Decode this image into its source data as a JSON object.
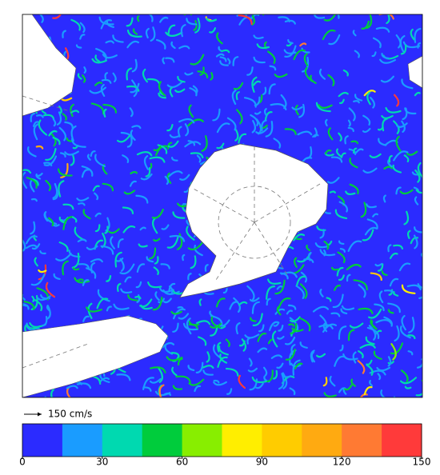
{
  "reference_vector": {
    "label": "150 cm/s"
  },
  "colorbar": {
    "lim": [
      0,
      150
    ],
    "ticks": [
      0,
      30,
      60,
      90,
      120,
      150
    ],
    "colors": [
      "#2b2bff",
      "#1a9cff",
      "#00d9b0",
      "#00cc3c",
      "#88ee00",
      "#ffee00",
      "#ffcc00",
      "#ffaa11",
      "#ff7a33",
      "#ff3a3a"
    ]
  }
}
